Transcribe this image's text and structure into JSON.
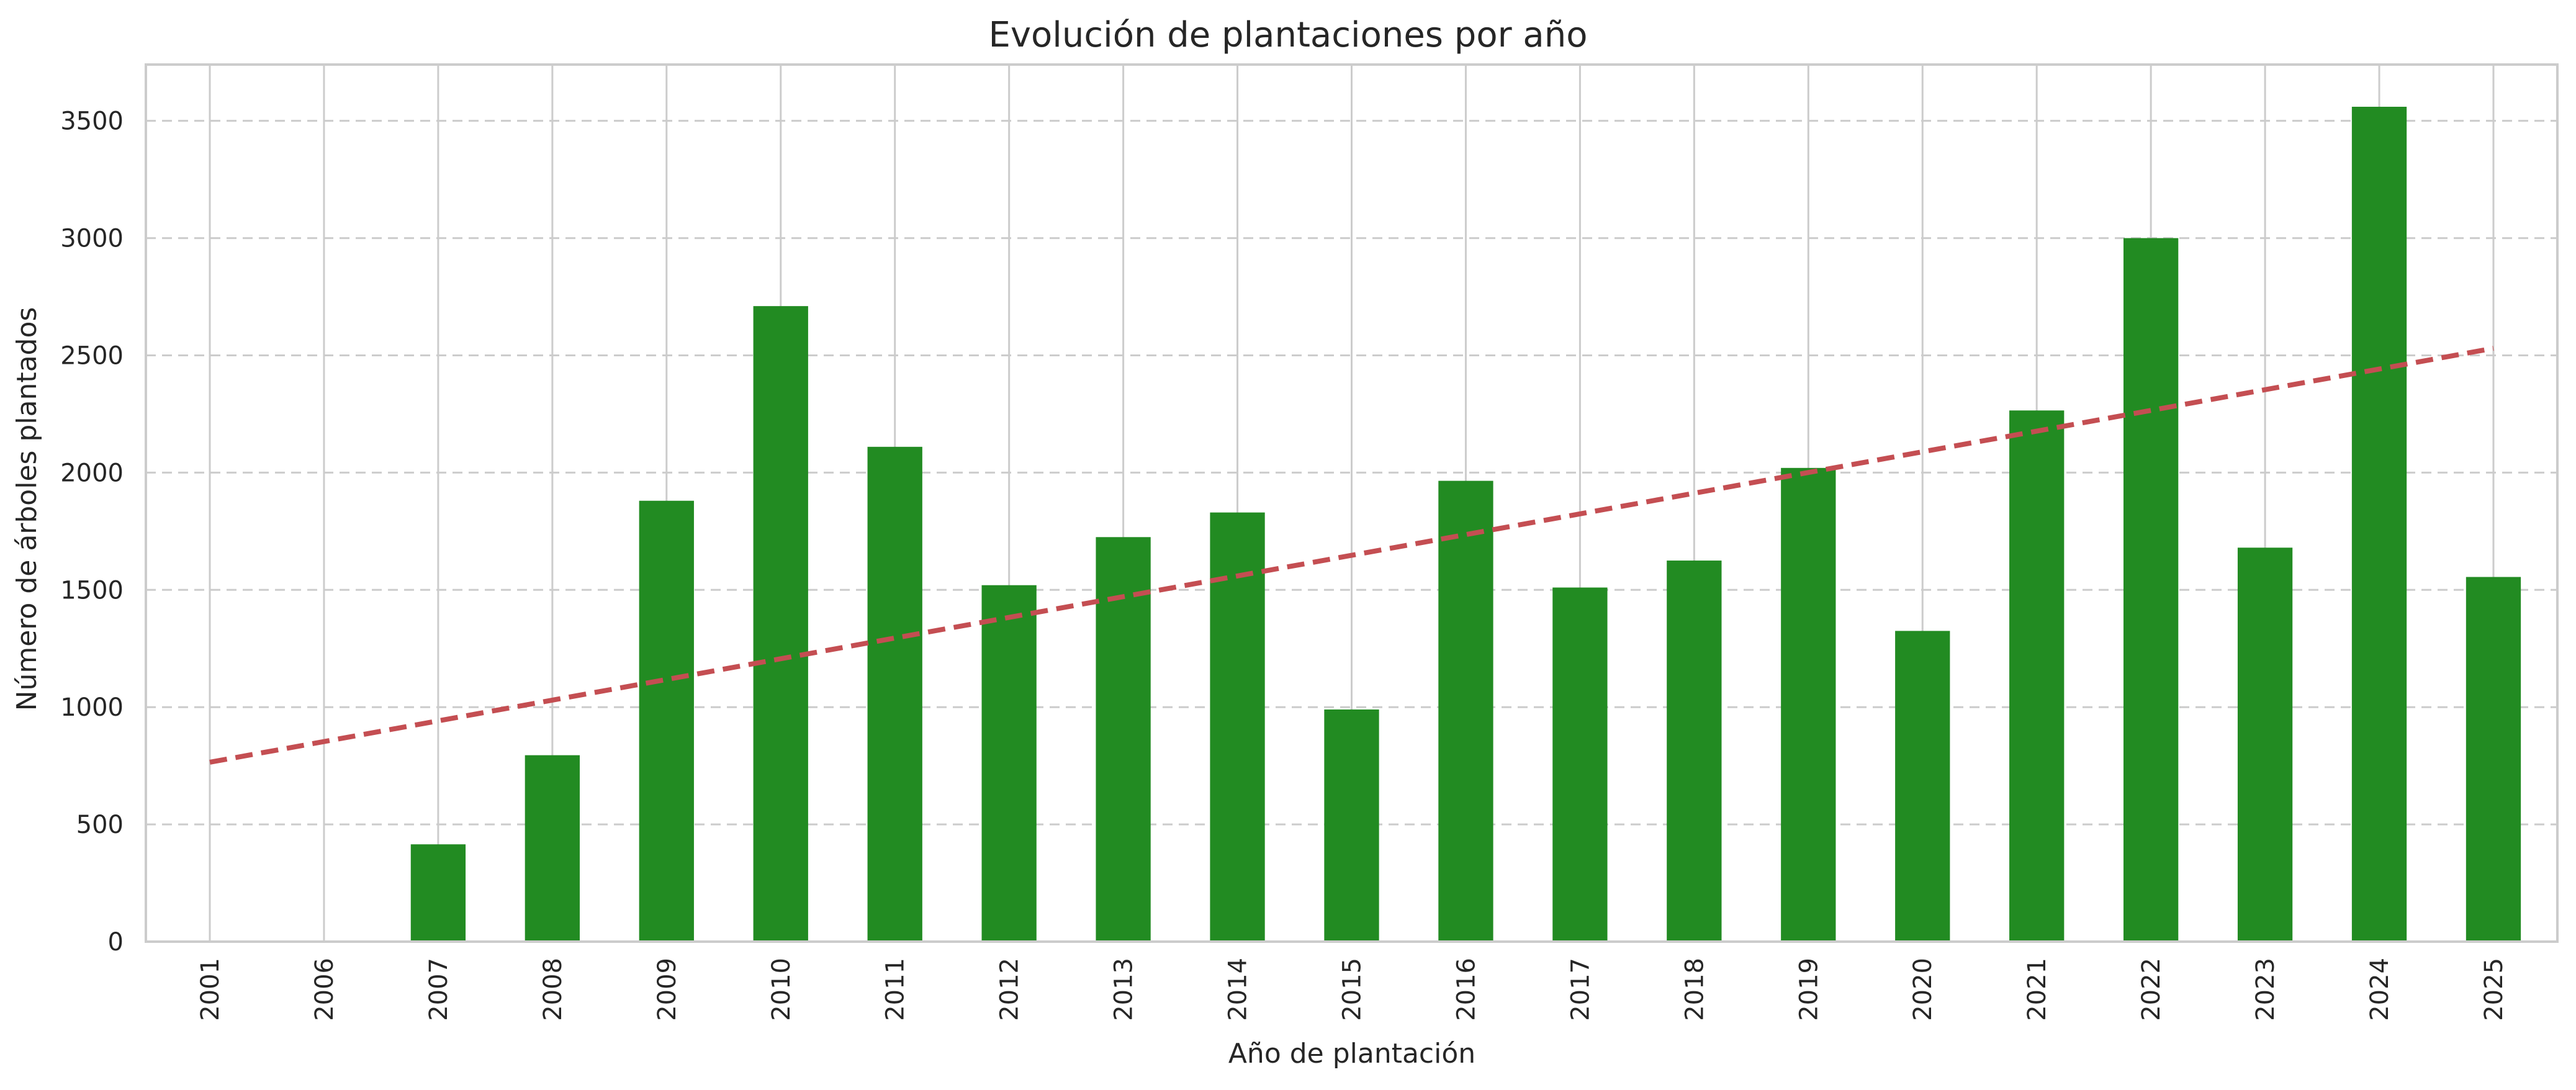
{
  "chart_data": {
    "type": "bar",
    "title": "Evolución de plantaciones por año",
    "xlabel": "Año de plantación",
    "ylabel": "Número de árboles plantados",
    "categories": [
      "2001",
      "2006",
      "2007",
      "2008",
      "2009",
      "2010",
      "2011",
      "2012",
      "2013",
      "2014",
      "2015",
      "2016",
      "2017",
      "2018",
      "2019",
      "2020",
      "2021",
      "2022",
      "2023",
      "2024",
      "2025"
    ],
    "values": [
      2,
      1,
      415,
      795,
      1880,
      2710,
      2110,
      1520,
      1725,
      1830,
      990,
      1965,
      1510,
      1625,
      2020,
      1325,
      2265,
      3000,
      1680,
      3560,
      1555
    ],
    "ylim": [
      0,
      3740
    ],
    "yticks": [
      0,
      500,
      1000,
      1500,
      2000,
      2500,
      3000,
      3500
    ],
    "grid": true,
    "bar_color": "#228b22",
    "trend": {
      "style": "dashed",
      "color": "#c44e52",
      "start_value": 765,
      "end_value": 2530
    }
  }
}
